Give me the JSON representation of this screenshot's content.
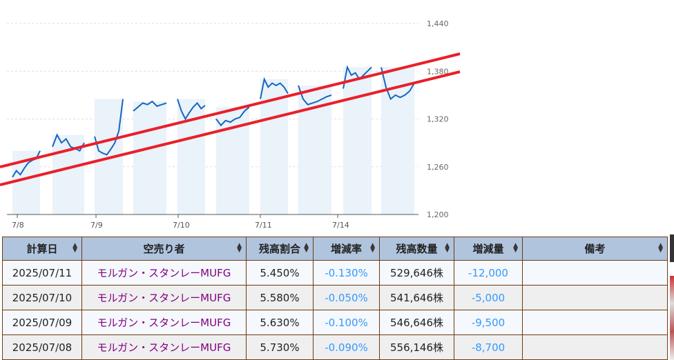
{
  "chart_data": {
    "type": "line",
    "y_ticks": [
      "1,440",
      "1,380",
      "1,320",
      "1,260",
      "1,200"
    ],
    "ylim": [
      1200,
      1440
    ],
    "x_ticks": [
      "7/8",
      "7/9",
      "7/10",
      "7/11",
      "7/14"
    ],
    "grid": true,
    "sessions": [
      {
        "day": "7/8",
        "values": [
          1247,
          1255,
          1250,
          1258,
          1265,
          1268,
          1270,
          1280
        ]
      },
      {
        "day": "7/8",
        "values": [
          1285,
          1300,
          1290,
          1295,
          1285,
          1283,
          1280,
          1290
        ]
      },
      {
        "day": "7/9",
        "values": [
          1298,
          1280,
          1277,
          1275,
          1282,
          1290,
          1305,
          1345
        ]
      },
      {
        "day": "7/9",
        "values": [
          1330,
          1335,
          1340,
          1338,
          1342,
          1336,
          1338,
          1340
        ]
      },
      {
        "day": "7/10",
        "values": [
          1345,
          1330,
          1320,
          1328,
          1335,
          1340,
          1333,
          1337
        ]
      },
      {
        "day": "7/10",
        "values": [
          1320,
          1312,
          1318,
          1316,
          1320,
          1322,
          1330,
          1335
        ]
      },
      {
        "day": "7/11",
        "values": [
          1345,
          1370,
          1360,
          1365,
          1362,
          1365,
          1360,
          1352
        ]
      },
      {
        "day": "7/11",
        "values": [
          1362,
          1345,
          1338,
          1340,
          1342,
          1345,
          1348,
          1350
        ]
      },
      {
        "day": "7/14",
        "values": [
          1358,
          1385,
          1375,
          1378,
          1370,
          1375,
          1380,
          1385
        ]
      },
      {
        "day": "7/14",
        "values": [
          1385,
          1360,
          1345,
          1350,
          1347,
          1350,
          1355,
          1365
        ]
      }
    ],
    "line_color": "#1565c0",
    "band_color": "#eaf2fa",
    "trendline_color": "#e8202a"
  },
  "table": {
    "headers": [
      "計算日",
      "空売り者",
      "残高割合",
      "増減率",
      "残高数量",
      "増減量",
      "備考"
    ],
    "sort_icon": "sort-arrows-icon",
    "rows": [
      [
        "2025/07/11",
        "モルガン・スタンレーMUFG",
        "5.450%",
        "-0.130%",
        "529,646株",
        "-12,000",
        ""
      ],
      [
        "2025/07/10",
        "モルガン・スタンレーMUFG",
        "5.580%",
        "-0.050%",
        "541,646株",
        "-5,000",
        ""
      ],
      [
        "2025/07/09",
        "モルガン・スタンレーMUFG",
        "5.630%",
        "-0.100%",
        "546,646株",
        "-9,500",
        ""
      ],
      [
        "2025/07/08",
        "モルガン・スタンレーMUFG",
        "5.730%",
        "-0.090%",
        "556,146株",
        "-8,700",
        ""
      ]
    ]
  }
}
